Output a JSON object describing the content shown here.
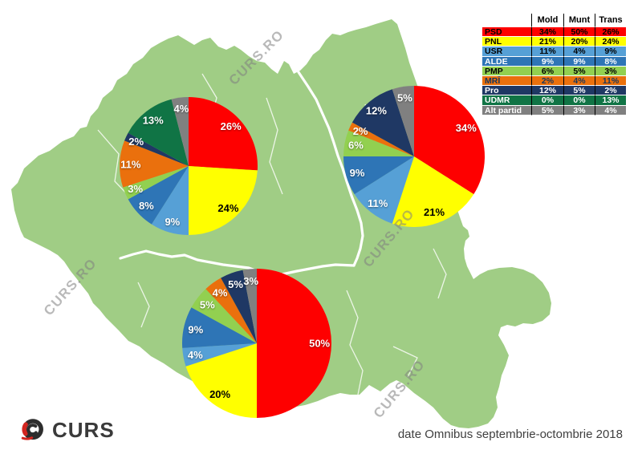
{
  "map": {
    "fill": "#A0CD85",
    "border_line_color": "#FFFFFF"
  },
  "watermark": {
    "text": "CURS.RO"
  },
  "branding": {
    "logo_text": "CURS"
  },
  "footer": {
    "caption": "date Omnibus septembrie-octombrie 2018"
  },
  "parties": [
    {
      "name": "PSD",
      "color": "#FE0000",
      "pie_label_color": "#FFFFFF",
      "row_text": "#000000"
    },
    {
      "name": "PNL",
      "color": "#FFFF00",
      "pie_label_color": "#000000",
      "row_text": "#000000"
    },
    {
      "name": "USR",
      "color": "#56A0D6",
      "pie_label_color": "#FFFFFF",
      "row_text": "#000000"
    },
    {
      "name": "ALDE",
      "color": "#2E75B6",
      "pie_label_color": "#FFFFFF",
      "row_text": "#FFFFFF"
    },
    {
      "name": "PMP",
      "color": "#92D050",
      "pie_label_color": "#FFFFFF",
      "row_text": "#000000"
    },
    {
      "name": "MRÎ",
      "color": "#EA700D",
      "pie_label_color": "#FFFFFF",
      "row_text": "#17375E"
    },
    {
      "name": "Pro România",
      "color": "#1F3864",
      "pie_label_color": "#FFFFFF",
      "row_text": "#FFFFFF"
    },
    {
      "name": "UDMR",
      "color": "#107445",
      "pie_label_color": "#FFFFFF",
      "row_text": "#FFFFFF"
    },
    {
      "name": "Alt partid",
      "color": "#808080",
      "pie_label_color": "#FFFFFF",
      "row_text": "#FFFFFF"
    }
  ],
  "legend_table": {
    "columns": [
      "Mold",
      "Munt",
      "Trans"
    ],
    "values": [
      [
        "34%",
        "50%",
        "26%"
      ],
      [
        "21%",
        "20%",
        "24%"
      ],
      [
        "11%",
        "4%",
        "9%"
      ],
      [
        "9%",
        "9%",
        "8%"
      ],
      [
        "6%",
        "5%",
        "3%"
      ],
      [
        "2%",
        "4%",
        "11%"
      ],
      [
        "12%",
        "5%",
        "2%"
      ],
      [
        "0%",
        "0%",
        "13%"
      ],
      [
        "5%",
        "3%",
        "4%"
      ]
    ]
  },
  "chart_data": [
    {
      "type": "pie",
      "column": "Mold",
      "categories": [
        "PSD",
        "PNL",
        "USR",
        "ALDE",
        "PMP",
        "MRÎ",
        "Pro România",
        "UDMR",
        "Alt partid"
      ],
      "values": [
        34,
        21,
        11,
        9,
        6,
        2,
        12,
        0,
        5
      ]
    },
    {
      "type": "pie",
      "column": "Munt",
      "categories": [
        "PSD",
        "PNL",
        "USR",
        "ALDE",
        "PMP",
        "MRÎ",
        "Pro România",
        "UDMR",
        "Alt partid"
      ],
      "values": [
        50,
        20,
        4,
        9,
        5,
        4,
        5,
        0,
        3
      ]
    },
    {
      "type": "pie",
      "column": "Trans",
      "categories": [
        "PSD",
        "PNL",
        "USR",
        "ALDE",
        "PMP",
        "MRÎ",
        "Pro România",
        "UDMR",
        "Alt partid"
      ],
      "values": [
        26,
        24,
        9,
        8,
        3,
        11,
        2,
        13,
        4
      ]
    }
  ]
}
